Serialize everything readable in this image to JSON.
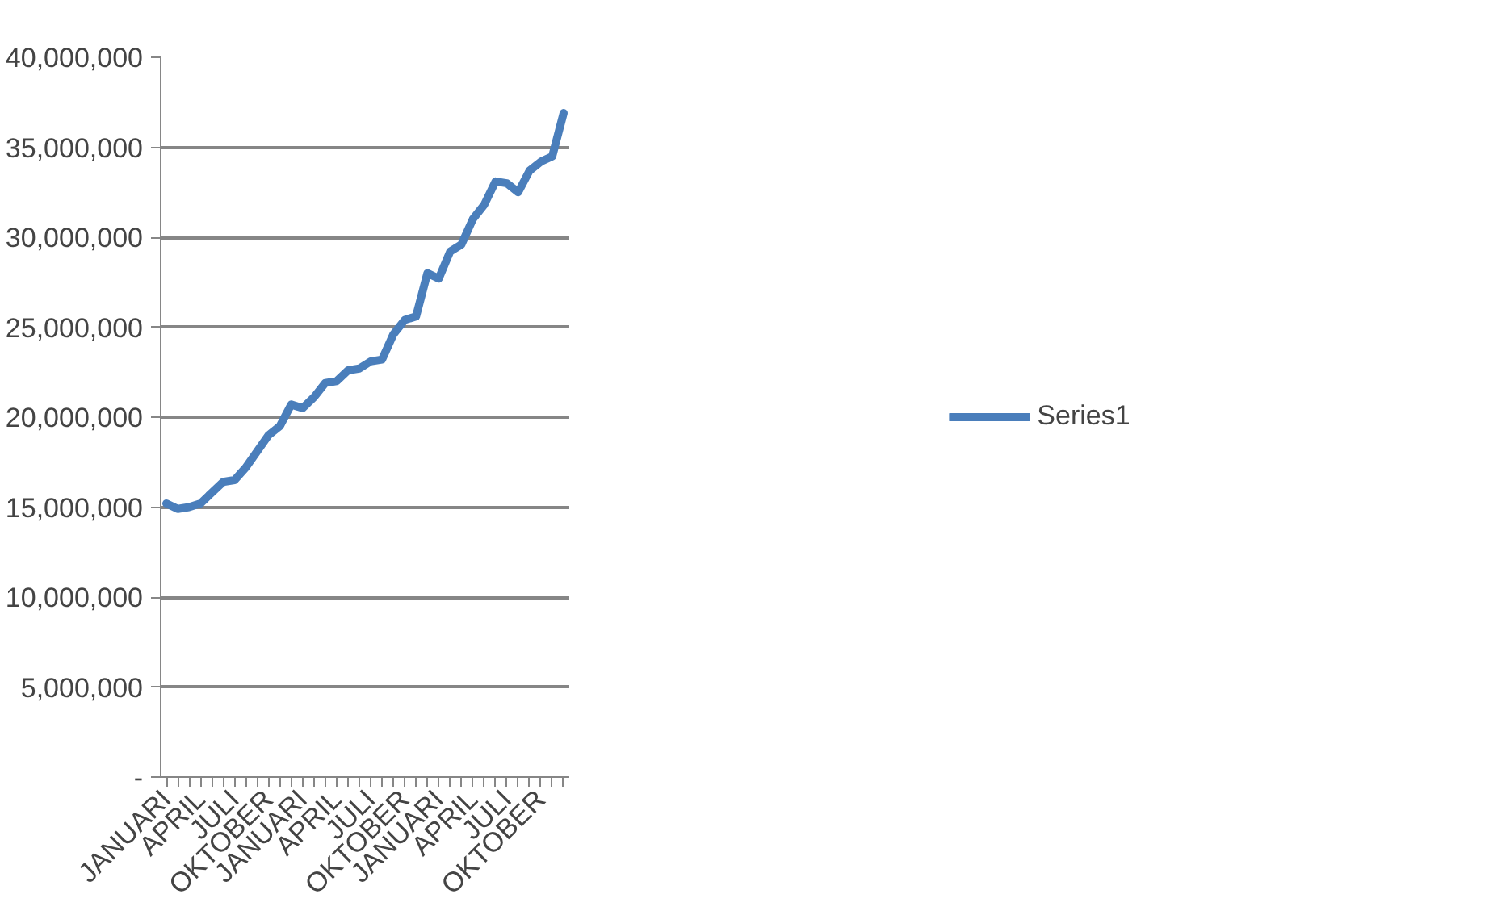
{
  "chart_data": {
    "type": "line",
    "categories": [
      "JANUARI",
      null,
      null,
      "APRIL",
      null,
      null,
      "JULI",
      null,
      null,
      "OKTOBER",
      null,
      null,
      "JANUARI",
      null,
      null,
      "APRIL",
      null,
      null,
      "JULI",
      null,
      null,
      "OKTOBER",
      null,
      null,
      "JANUARI",
      null,
      null,
      "APRIL",
      null,
      null,
      "JULI",
      null,
      null,
      "OKTOBER",
      null,
      null
    ],
    "series": [
      {
        "name": "Series1",
        "color": "#4a7ebb",
        "values": [
          15200000,
          14900000,
          15000000,
          15200000,
          15800000,
          16400000,
          16500000,
          17200000,
          18100000,
          19000000,
          19500000,
          20700000,
          20500000,
          21100000,
          21900000,
          22000000,
          22600000,
          22700000,
          23100000,
          23200000,
          24600000,
          25400000,
          25600000,
          28000000,
          27700000,
          29200000,
          29600000,
          31000000,
          31800000,
          33100000,
          33000000,
          32500000,
          33700000,
          34200000,
          34500000,
          36900000
        ]
      }
    ],
    "ylim": [
      0,
      40000000
    ],
    "yticks": [
      {
        "value": 0,
        "label": "-"
      },
      {
        "value": 5000000,
        "label": "5,000,000"
      },
      {
        "value": 10000000,
        "label": "10,000,000"
      },
      {
        "value": 15000000,
        "label": "15,000,000"
      },
      {
        "value": 20000000,
        "label": "20,000,000"
      },
      {
        "value": 25000000,
        "label": "25,000,000"
      },
      {
        "value": 30000000,
        "label": "30,000,000"
      },
      {
        "value": 35000000,
        "label": "35,000,000"
      },
      {
        "value": 40000000,
        "label": "40,000,000"
      }
    ],
    "grid": "y",
    "legend": "right",
    "line_style": "solid"
  }
}
